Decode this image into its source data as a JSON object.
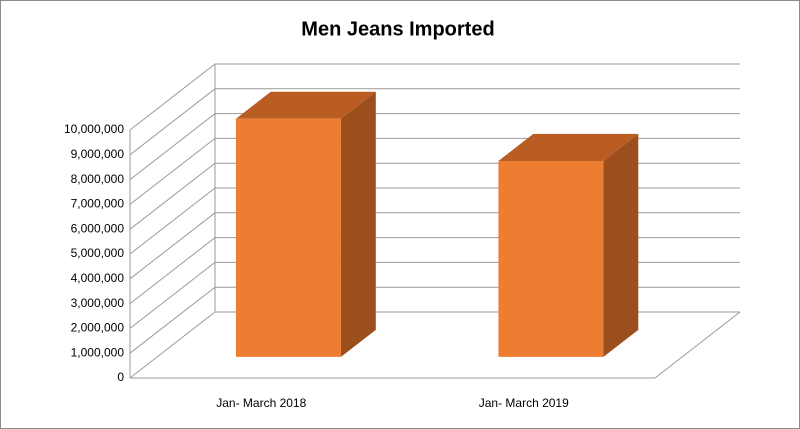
{
  "chart_data": {
    "type": "bar3d",
    "title": "Men Jeans Imported",
    "categories": [
      "Jan- March 2018",
      "Jan- March 2019"
    ],
    "values": [
      9600000,
      7900000
    ],
    "color": "#ed7d31",
    "ylim": [
      0,
      10000000
    ],
    "yticks": [
      0,
      {
        "value": 1000000,
        "label": "1,000,000"
      },
      {
        "value": 2000000,
        "label": "2,000,000"
      },
      {
        "value": 3000000,
        "label": "3,000,000"
      },
      {
        "value": 4000000,
        "label": "4,000,000"
      },
      {
        "value": 5000000,
        "label": "5,000,000"
      },
      {
        "value": 6000000,
        "label": "6,000,000"
      },
      {
        "value": 7000000,
        "label": "7,000,000"
      },
      {
        "value": 8000000,
        "label": "8,000,000"
      },
      {
        "value": 9000000,
        "label": "9,000,000"
      },
      {
        "value": 10000000,
        "label": "10,000,000"
      }
    ],
    "grid": true
  }
}
